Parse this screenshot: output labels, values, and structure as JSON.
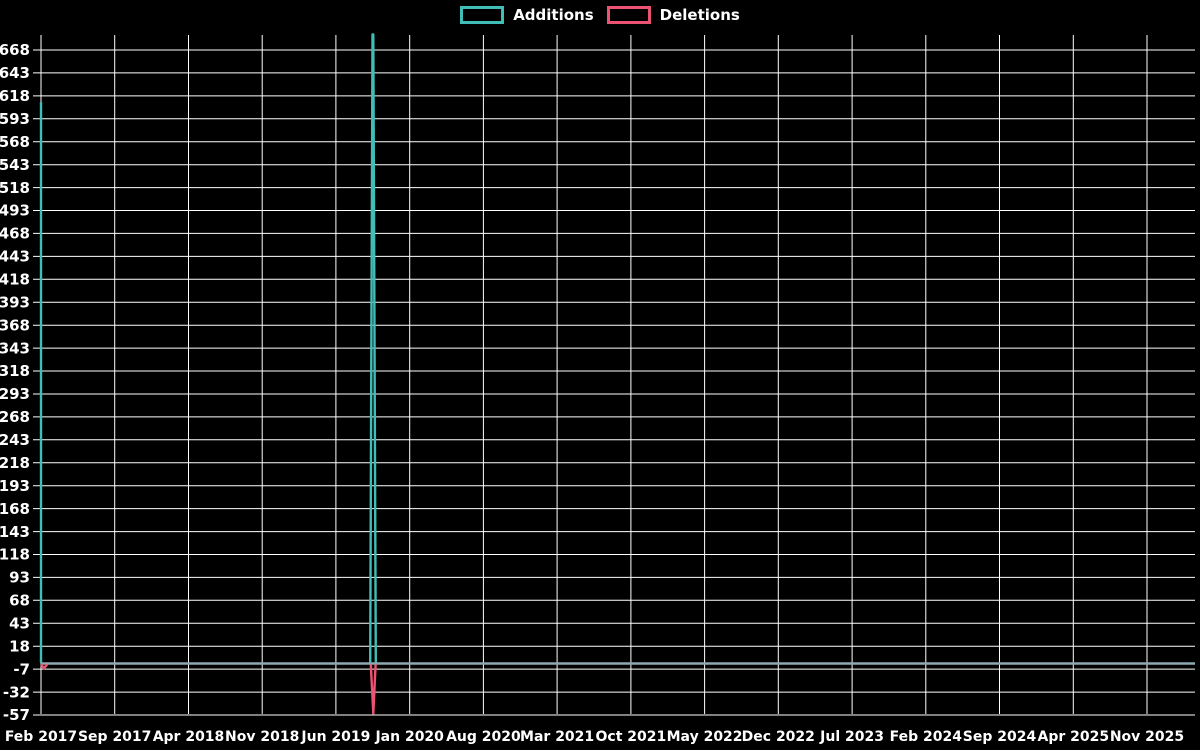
{
  "chart_data": {
    "type": "line",
    "title": "",
    "legend": [
      {
        "label": "Additions",
        "color": "#41bdb7"
      },
      {
        "label": "Deletions",
        "color": "#ec5373"
      }
    ],
    "x_axis": {
      "ticks": [
        "Feb 2017",
        "Sep 2017",
        "Apr 2018",
        "Nov 2018",
        "Jun 2019",
        "Jan 2020",
        "Aug 2020",
        "Mar 2021",
        "Oct 2021",
        "May 2022",
        "Dec 2022",
        "Jul 2023",
        "Feb 2024",
        "Sep 2024",
        "Apr 2025",
        "Nov 2025"
      ],
      "range": [
        "Feb 2017",
        "Nov 2025"
      ]
    },
    "y_axis": {
      "ticks": [
        668,
        643,
        618,
        593,
        568,
        543,
        518,
        493,
        468,
        443,
        418,
        393,
        368,
        343,
        318,
        293,
        268,
        243,
        218,
        193,
        168,
        143,
        118,
        93,
        68,
        43,
        18,
        -7,
        -32,
        -57
      ],
      "tick_step": 25,
      "top_tick": 668,
      "bottom_tick": -57
    },
    "series": [
      {
        "name": "Additions",
        "color": "#41bdb7",
        "baseline_value": 0,
        "spikes": [
          {
            "date": "Feb 2017",
            "x_frac": 0.0,
            "value": 611,
            "clipped": false
          },
          {
            "date": "Oct 2019",
            "x_frac": 0.3,
            "value": 685,
            "clipped": true
          }
        ]
      },
      {
        "name": "Deletions",
        "color": "#ec5373",
        "baseline_value": 0,
        "spikes": [
          {
            "date": "Feb 2017",
            "x_frac": 0.0,
            "value": -6,
            "clipped": false
          },
          {
            "date": "Oct 2019",
            "x_frac": 0.3,
            "value": -57,
            "clipped": false
          }
        ]
      }
    ],
    "all_other_values": 0,
    "colors": {
      "background": "#000000",
      "gridline": "#ffffff",
      "text": "#ffffff",
      "baseline_blend": "#8fa9b4"
    },
    "grid": "on",
    "legend_position": "top-center"
  }
}
